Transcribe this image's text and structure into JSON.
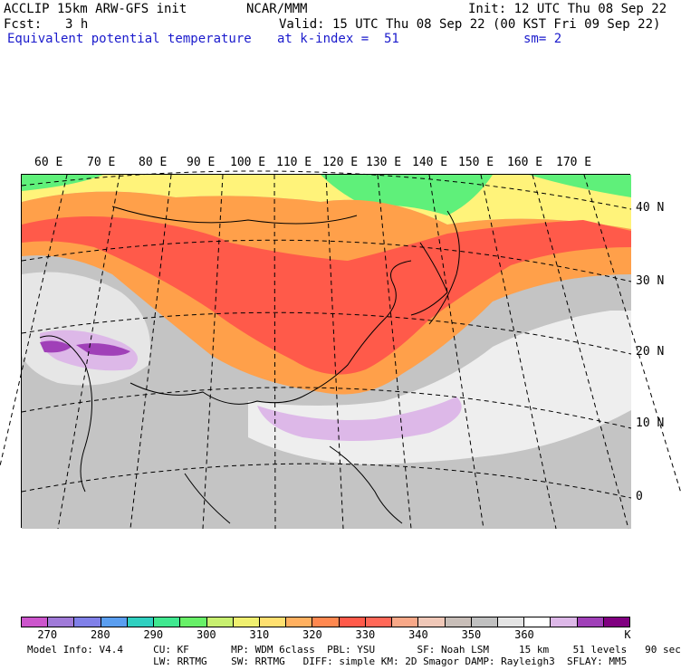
{
  "header": {
    "model_title": "ACCLIP 15km ARW-GFS init",
    "forecast_label": "Fcst:",
    "forecast_hours": "3 h",
    "field_name": "Equivalent potential temperature",
    "source": "NCAR/MMM",
    "init_time": "Init: 12 UTC Thu 08 Sep 22",
    "valid_time": "Valid: 15 UTC Thu 08 Sep 22 (00 KST Fri 09 Sep 22)",
    "level": "at k-index =  51",
    "smoothing": "sm= 2"
  },
  "map": {
    "projection": "polar stereographic",
    "longitude_labels": [
      "60 E",
      "70 E",
      "80 E",
      "90 E",
      "100 E",
      "110 E",
      "120 E",
      "130 E",
      "140 E",
      "150 E",
      "160 E",
      "170 E"
    ],
    "latitude_labels": [
      "40 N",
      "30 N",
      "20 N",
      "10 N",
      "0"
    ],
    "field_colors": {
      "north_cold": "#5ff07a",
      "north_warm": "#fff37a",
      "band_orange": "#ffa04a",
      "band_red": "#ff5a4a",
      "tropics_grey": "#c4c4c4",
      "tropics_white": "#eeeeee",
      "high_lilac": "#ddb8e8",
      "high_purple": "#a040b8"
    }
  },
  "colorbar": {
    "unit": "K",
    "tick_labels": [
      "270",
      "280",
      "290",
      "300",
      "310",
      "320",
      "330",
      "340",
      "350",
      "360"
    ],
    "colors": [
      "#cc55cc",
      "#a07ad8",
      "#8080e8",
      "#5a9ef0",
      "#30d0c0",
      "#40e890",
      "#68f068",
      "#c8f070",
      "#f0f070",
      "#ffe070",
      "#ffb060",
      "#ff8850",
      "#ff5a4a",
      "#ff6858",
      "#f8a888",
      "#f0c8b8",
      "#c8beb8",
      "#c0c0c0",
      "#e4e4e4",
      "#ffffff",
      "#ddb8e8",
      "#a040b8",
      "#800080"
    ]
  },
  "footer": {
    "line1": "Model Info: V4.4     CU: KF       MP: WDM 6class  PBL: YSU       SF: Noah LSM     15 km    51 levels   90 sec",
    "line2": "                     LW: RRTMG    SW: RRTMG   DIFF: simple KM: 2D Smagor DAMP: Rayleigh3  SFLAY: MM5"
  }
}
